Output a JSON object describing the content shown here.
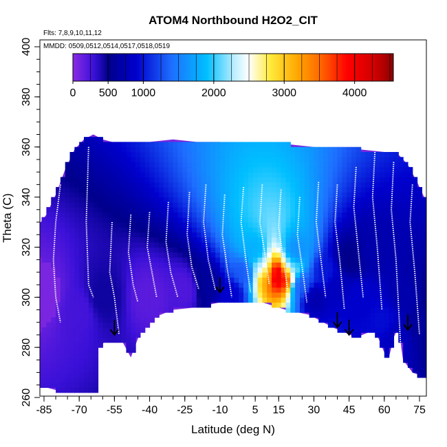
{
  "chart_data": {
    "type": "heatmap",
    "title": "ATOM4 Northbound H2O2_CIT",
    "annotations": {
      "flights": "Flts: 7,8,9,10,11,12",
      "dates": "MMDD: 0509,0512,0514,0517,0518,0519"
    },
    "xlabel": "Latitude (deg N)",
    "ylabel": "Theta (C)",
    "xlim": [
      -88,
      88
    ],
    "ylim": [
      260,
      405
    ],
    "x_ticks": [
      "-85",
      "-70",
      "-55",
      "-40",
      "-25",
      "-10",
      "5",
      "15",
      "30",
      "45",
      "60",
      "75"
    ],
    "x_tick_values": [
      -85,
      -70,
      -55,
      -40,
      -25,
      -10,
      5,
      15,
      30,
      45,
      60,
      75
    ],
    "y_ticks": [
      "260",
      "280",
      "300",
      "320",
      "340",
      "360",
      "380",
      "400"
    ],
    "y_tick_values": [
      260,
      280,
      300,
      320,
      340,
      360,
      380,
      400
    ],
    "colorbar": {
      "range": [
        0,
        4550
      ],
      "ticks": [
        "0",
        "500",
        "1000",
        "2000",
        "3000",
        "4000"
      ],
      "tick_values": [
        0,
        500,
        1000,
        2000,
        3000,
        4000
      ],
      "stops": [
        {
          "v": 0,
          "c": "#8a2be2"
        },
        {
          "v": 300,
          "c": "#3a10d8"
        },
        {
          "v": 500,
          "c": "#00008b"
        },
        {
          "v": 900,
          "c": "#0000cd"
        },
        {
          "v": 1400,
          "c": "#1e6eff"
        },
        {
          "v": 1900,
          "c": "#00bfff"
        },
        {
          "v": 2300,
          "c": "#bfefff"
        },
        {
          "v": 2500,
          "c": "#ffffff"
        },
        {
          "v": 2800,
          "c": "#ffeb3b"
        },
        {
          "v": 3200,
          "c": "#ffa500"
        },
        {
          "v": 3500,
          "c": "#ff6a00"
        },
        {
          "v": 3900,
          "c": "#ff0000"
        },
        {
          "v": 4300,
          "c": "#cd0000"
        },
        {
          "v": 4550,
          "c": "#8b0000"
        }
      ]
    },
    "domain_outline": {
      "top": [
        [
          -88,
          328
        ],
        [
          -84,
          333
        ],
        [
          -80,
          341
        ],
        [
          -76,
          351
        ],
        [
          -72,
          359
        ],
        [
          -68,
          363
        ],
        [
          -64,
          365
        ],
        [
          -60,
          363
        ],
        [
          -56,
          362
        ],
        [
          -50,
          362
        ],
        [
          -40,
          362
        ],
        [
          -30,
          363
        ],
        [
          -20,
          362
        ],
        [
          -10,
          362
        ],
        [
          0,
          361
        ],
        [
          10,
          361
        ],
        [
          20,
          361
        ],
        [
          30,
          360
        ],
        [
          40,
          359
        ],
        [
          50,
          359
        ],
        [
          60,
          358
        ],
        [
          66,
          357
        ],
        [
          70,
          353
        ],
        [
          74,
          346
        ],
        [
          78,
          338
        ],
        [
          82,
          330
        ],
        [
          86,
          322
        ],
        [
          88,
          318
        ]
      ],
      "bottom": [
        [
          -88,
          265
        ],
        [
          -80,
          263
        ],
        [
          -70,
          262
        ],
        [
          -62,
          262
        ],
        [
          -62,
          280
        ],
        [
          -58,
          283
        ],
        [
          -52,
          283
        ],
        [
          -48,
          276
        ],
        [
          -44,
          286
        ],
        [
          -38,
          292
        ],
        [
          -30,
          295
        ],
        [
          -20,
          296
        ],
        [
          -10,
          298
        ],
        [
          0,
          299
        ],
        [
          8,
          298
        ],
        [
          18,
          295
        ],
        [
          28,
          293
        ],
        [
          38,
          288
        ],
        [
          48,
          284
        ],
        [
          56,
          287
        ],
        [
          60,
          278
        ],
        [
          62,
          276
        ],
        [
          64,
          284
        ],
        [
          66,
          288
        ],
        [
          68,
          275
        ],
        [
          72,
          270
        ],
        [
          80,
          267
        ],
        [
          88,
          265
        ]
      ]
    },
    "values": [
      {
        "lat": -85,
        "theta": 300,
        "v": 120
      },
      {
        "lat": -70,
        "theta": 295,
        "v": 260
      },
      {
        "lat": -60,
        "theta": 300,
        "v": 450
      },
      {
        "lat": -40,
        "theta": 300,
        "v": 180
      },
      {
        "lat": -25,
        "theta": 303,
        "v": 220
      },
      {
        "lat": -15,
        "theta": 305,
        "v": 600
      },
      {
        "lat": -5,
        "theta": 302,
        "v": 900
      },
      {
        "lat": 0,
        "theta": 310,
        "v": 1300
      },
      {
        "lat": 5,
        "theta": 318,
        "v": 1800
      },
      {
        "lat": 8,
        "theta": 312,
        "v": 2200
      },
      {
        "lat": 10,
        "theta": 309,
        "v": 3200
      },
      {
        "lat": 14,
        "theta": 309,
        "v": 4300
      },
      {
        "lat": 17,
        "theta": 309,
        "v": 3900
      },
      {
        "lat": 20,
        "theta": 312,
        "v": 2000
      },
      {
        "lat": 22,
        "theta": 318,
        "v": 1600
      },
      {
        "lat": 25,
        "theta": 305,
        "v": 1300
      },
      {
        "lat": 30,
        "theta": 300,
        "v": 700
      },
      {
        "lat": 35,
        "theta": 310,
        "v": 1000
      },
      {
        "lat": 40,
        "theta": 305,
        "v": 800
      },
      {
        "lat": 45,
        "theta": 315,
        "v": 500
      },
      {
        "lat": 50,
        "theta": 300,
        "v": 900
      },
      {
        "lat": 55,
        "theta": 318,
        "v": 700
      },
      {
        "lat": 60,
        "theta": 290,
        "v": 950
      },
      {
        "lat": 65,
        "theta": 285,
        "v": 800
      },
      {
        "lat": 70,
        "theta": 300,
        "v": 700
      },
      {
        "lat": 75,
        "theta": 290,
        "v": 600
      },
      {
        "lat": 80,
        "theta": 300,
        "v": 500
      },
      {
        "lat": 85,
        "theta": 285,
        "v": 400
      }
    ],
    "flight_tracks": [
      {
        "lat": [
          -78,
          -80,
          -81,
          -80,
          -78
        ],
        "theta": [
          345,
          330,
          315,
          300,
          290
        ]
      },
      {
        "lat": [
          -66,
          -67,
          -66,
          -64
        ],
        "theta": [
          360,
          330,
          305,
          300
        ]
      },
      {
        "lat": [
          -56,
          -57,
          -55,
          -53
        ],
        "theta": [
          330,
          310,
          300,
          285
        ]
      },
      {
        "lat": [
          -48,
          -49,
          -47,
          -45
        ],
        "theta": [
          333,
          318,
          305,
          298
        ]
      },
      {
        "lat": [
          -40,
          -41,
          -39,
          -37
        ],
        "theta": [
          334,
          320,
          310,
          300
        ]
      },
      {
        "lat": [
          -32,
          -33,
          -31,
          -28
        ],
        "theta": [
          338,
          322,
          310,
          300
        ]
      },
      {
        "lat": [
          -23,
          -24,
          -22,
          -19
        ],
        "theta": [
          342,
          325,
          312,
          303
        ]
      },
      {
        "lat": [
          -16,
          -17,
          -15,
          -12
        ],
        "theta": [
          345,
          330,
          315,
          303
        ]
      },
      {
        "lat": [
          -8,
          -9,
          -7,
          -5
        ],
        "theta": [
          341,
          325,
          312,
          300
        ]
      },
      {
        "lat": [
          0,
          -1,
          1,
          3
        ],
        "theta": [
          344,
          330,
          315,
          302
        ]
      },
      {
        "lat": [
          8,
          7,
          9,
          11
        ],
        "theta": [
          345,
          330,
          318,
          305
        ]
      },
      {
        "lat": [
          16,
          15,
          17,
          19
        ],
        "theta": [
          343,
          328,
          315,
          302
        ]
      },
      {
        "lat": [
          24,
          23,
          25,
          27
        ],
        "theta": [
          340,
          325,
          312,
          298
        ]
      },
      {
        "lat": [
          32,
          31,
          33,
          35
        ],
        "theta": [
          346,
          330,
          315,
          300
        ]
      },
      {
        "lat": [
          40,
          39,
          41,
          43
        ],
        "theta": [
          345,
          330,
          315,
          295
        ]
      },
      {
        "lat": [
          48,
          47,
          49,
          51
        ],
        "theta": [
          352,
          336,
          318,
          300
        ]
      },
      {
        "lat": [
          56,
          55,
          57,
          59
        ],
        "theta": [
          358,
          340,
          320,
          295
        ]
      },
      {
        "lat": [
          64,
          63,
          65,
          67
        ],
        "theta": [
          354,
          335,
          315,
          280
        ]
      },
      {
        "lat": [
          72,
          71,
          73,
          75
        ],
        "theta": [
          345,
          330,
          310,
          285
        ]
      },
      {
        "lat": [
          80,
          79,
          81,
          83
        ],
        "theta": [
          333,
          318,
          300,
          275
        ]
      }
    ],
    "arrows": [
      {
        "lat": -55,
        "theta": 285
      },
      {
        "lat": -10,
        "theta": 302
      },
      {
        "lat": 40,
        "theta": 288
      },
      {
        "lat": 45,
        "theta": 285
      },
      {
        "lat": 70,
        "theta": 287
      }
    ],
    "grid": false,
    "legend": "colorbar-top"
  }
}
